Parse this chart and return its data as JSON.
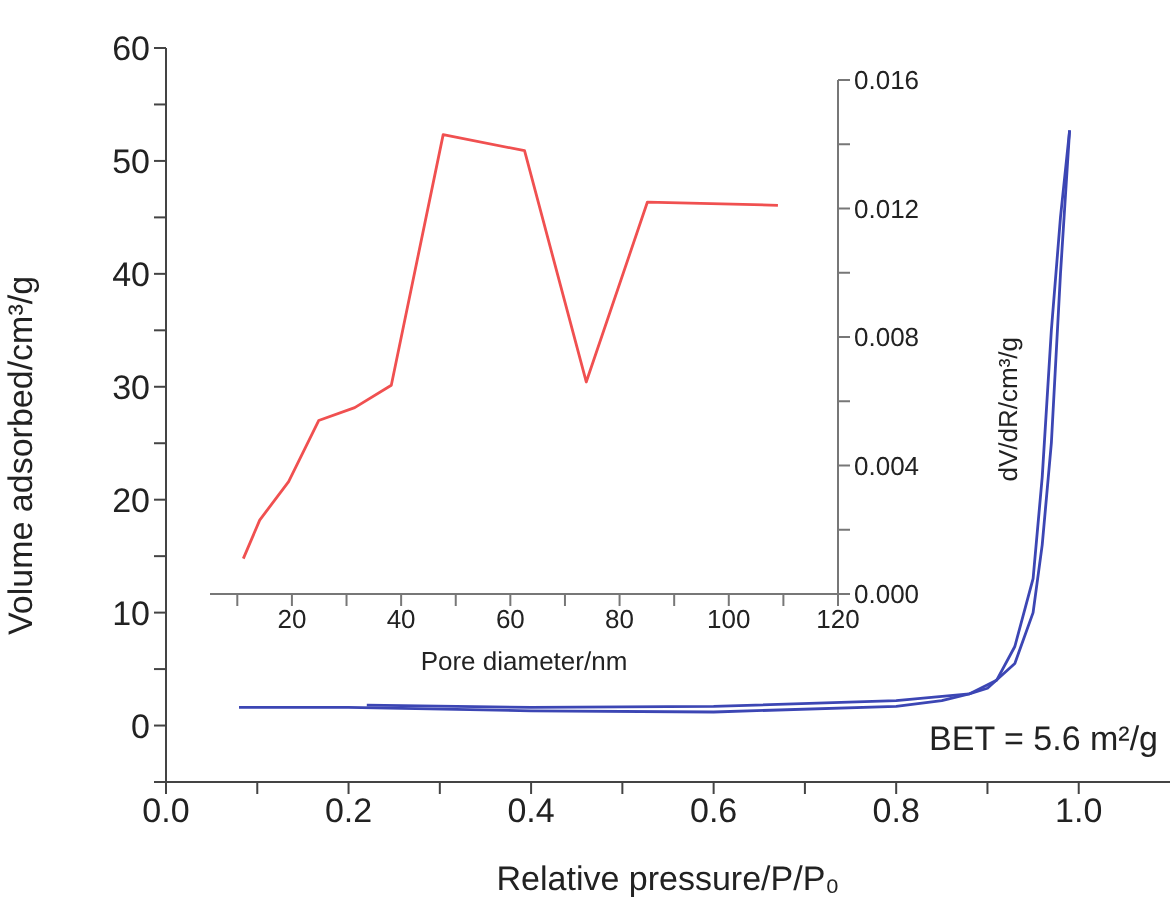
{
  "chart_data": [
    {
      "type": "line",
      "xlabel": "Relative pressure/P/P₀",
      "ylabel": "Volume adsorbed/cm³/g",
      "xlim": [
        0,
        1.1
      ],
      "ylim": [
        -5,
        60
      ],
      "xticks": [
        {
          "value": 0,
          "label": "0.0"
        },
        {
          "value": 0.1,
          "label": null
        },
        0.2,
        {
          "value": 0.3,
          "label": null
        },
        0.4,
        {
          "value": 0.5,
          "label": null
        },
        0.6,
        {
          "value": 0.7,
          "label": null
        },
        0.8,
        {
          "value": 0.9,
          "label": null
        },
        {
          "value": 1,
          "label": "1.0"
        }
      ],
      "yticks": [
        {
          "value": -5,
          "label": null
        },
        0,
        {
          "value": 5,
          "label": null
        },
        10,
        {
          "value": 15,
          "label": null
        },
        20,
        {
          "value": 25,
          "label": null
        },
        30,
        {
          "value": 35,
          "label": null
        },
        40,
        {
          "value": 45,
          "label": null
        },
        50,
        {
          "value": 55,
          "label": null
        },
        60
      ],
      "marker": "none",
      "series": [
        {
          "color": "#3c46b4",
          "x": [
            0.08,
            0.2,
            0.4,
            0.6,
            0.8,
            0.85,
            0.88,
            0.9,
            0.93,
            0.95,
            0.96,
            0.97,
            0.98,
            0.99
          ],
          "values": [
            1.6,
            1.6,
            1.3,
            1.2,
            1.7,
            2.2,
            2.8,
            3.3,
            5.5,
            10,
            16,
            25,
            40,
            52.7
          ]
        },
        {
          "color": "#3c46b4",
          "x": [
            0.99,
            0.98,
            0.97,
            0.96,
            0.95,
            0.93,
            0.91,
            0.88,
            0.8,
            0.6,
            0.4,
            0.22
          ],
          "values": [
            52.7,
            45,
            35,
            22,
            13,
            7,
            4,
            2.8,
            2.2,
            1.7,
            1.6,
            1.8
          ]
        }
      ],
      "annotations": [
        "BET = 5.6 m²/g"
      ]
    },
    {
      "type": "line",
      "xlabel": "Pore diameter/nm",
      "ylabel": "dV/dR/cm³/g",
      "xlim": [
        5,
        120
      ],
      "ylim": [
        0,
        0.016
      ],
      "xticks": [
        {
          "value": 10,
          "label": null
        },
        20,
        {
          "value": 30,
          "label": null
        },
        40,
        {
          "value": 50,
          "label": null
        },
        60,
        {
          "value": 70,
          "label": null
        },
        80,
        {
          "value": 90,
          "label": null
        },
        100,
        {
          "value": 110,
          "label": null
        },
        120
      ],
      "yticks": [
        {
          "value": 0,
          "label": "0.000"
        },
        {
          "value": 0.002,
          "label": null
        },
        {
          "value": 0.004,
          "label": "0.004"
        },
        {
          "value": 0.006,
          "label": null
        },
        {
          "value": 0.008,
          "label": "0.008"
        },
        {
          "value": 0.01,
          "label": null
        },
        {
          "value": 0.012,
          "label": "0.012"
        },
        {
          "value": 0.014,
          "label": null
        },
        {
          "value": 0.016,
          "label": "0.016"
        }
      ],
      "marker": "none",
      "series": [
        {
          "color": "#f05050",
          "x": [
            11.1,
            14.1,
            19.4,
            24.9,
            31.5,
            38.2,
            47.7,
            62.6,
            73.9,
            85.1,
            109
          ],
          "values": [
            0.0011,
            0.0023,
            0.0035,
            0.0054,
            0.0058,
            0.0065,
            0.0143,
            0.0138,
            0.0066,
            0.0122,
            0.0121
          ]
        }
      ]
    }
  ]
}
